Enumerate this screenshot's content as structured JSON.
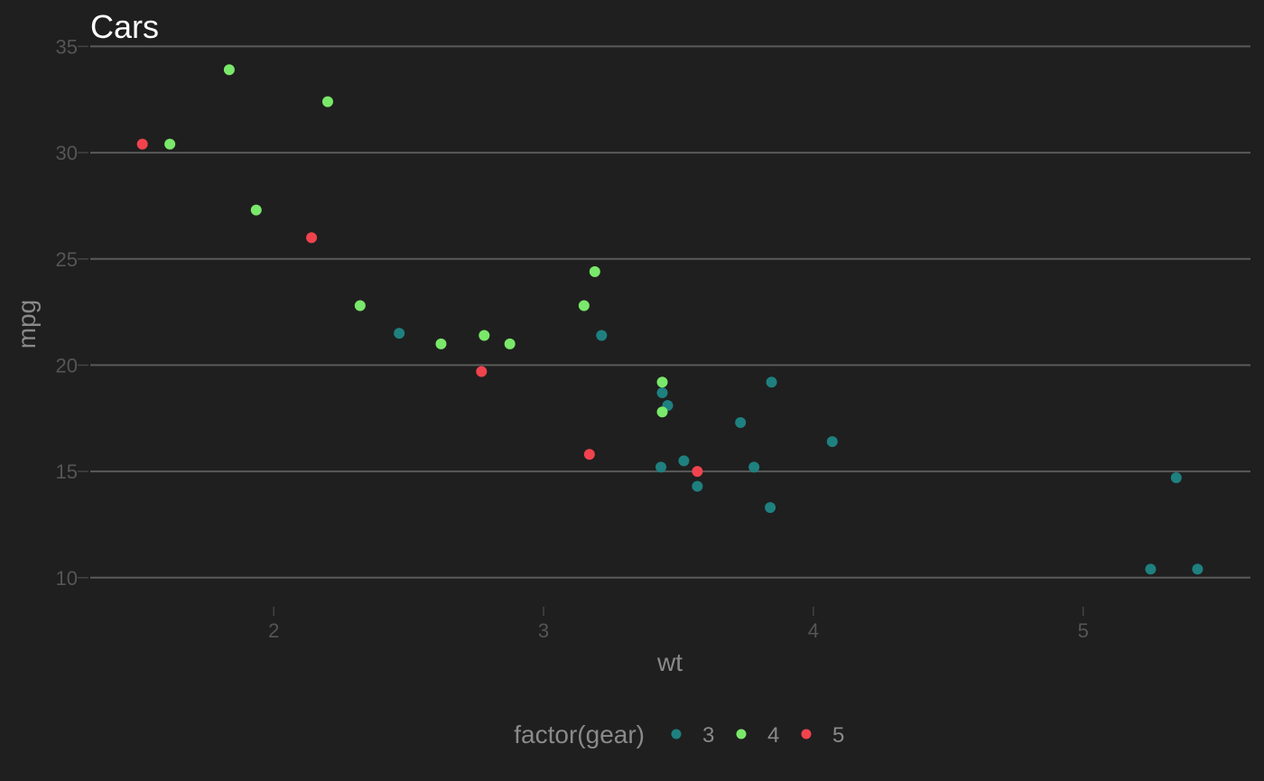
{
  "chart_data": {
    "type": "scatter",
    "title": "Cars",
    "xlabel": "wt",
    "ylabel": "mpg",
    "xlim": [
      1.32,
      5.62
    ],
    "ylim": [
      8.8,
      35.4
    ],
    "x_ticks": [
      2,
      3,
      4,
      5
    ],
    "y_ticks": [
      10,
      15,
      20,
      25,
      30,
      35
    ],
    "grid": "horizontal-major",
    "legend": {
      "title": "factor(gear)",
      "placement": "bottom"
    },
    "series": [
      {
        "name": "3",
        "color": "#1f8080",
        "points": [
          [
            2.465,
            21.5
          ],
          [
            3.215,
            21.4
          ],
          [
            3.44,
            18.7
          ],
          [
            3.46,
            18.1
          ],
          [
            3.57,
            14.3
          ],
          [
            3.73,
            17.3
          ],
          [
            3.78,
            15.2
          ],
          [
            3.84,
            13.3
          ],
          [
            3.845,
            19.2
          ],
          [
            4.07,
            16.4
          ],
          [
            3.435,
            15.2
          ],
          [
            3.52,
            15.5
          ],
          [
            5.25,
            10.4
          ],
          [
            5.345,
            14.7
          ],
          [
            5.424,
            10.4
          ]
        ]
      },
      {
        "name": "4",
        "color": "#7ae86a",
        "points": [
          [
            1.615,
            30.4
          ],
          [
            1.835,
            33.9
          ],
          [
            1.935,
            27.3
          ],
          [
            2.2,
            32.4
          ],
          [
            2.32,
            22.8
          ],
          [
            2.62,
            21.0
          ],
          [
            2.78,
            21.4
          ],
          [
            2.875,
            21.0
          ],
          [
            3.15,
            22.8
          ],
          [
            3.19,
            24.4
          ],
          [
            3.44,
            19.2
          ],
          [
            3.44,
            17.8
          ]
        ]
      },
      {
        "name": "5",
        "color": "#f0434d",
        "points": [
          [
            1.513,
            30.4
          ],
          [
            2.14,
            26.0
          ],
          [
            2.77,
            19.7
          ],
          [
            3.17,
            15.8
          ],
          [
            3.57,
            15.0
          ]
        ]
      }
    ]
  }
}
